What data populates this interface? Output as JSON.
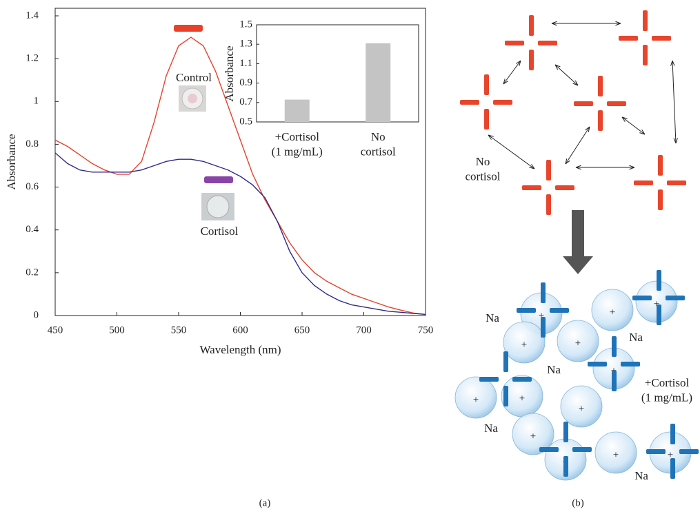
{
  "chart_data": [
    {
      "type": "line",
      "x_label": "Wavelength (nm)",
      "y_label": "Absorbance",
      "x": [
        450,
        460,
        470,
        480,
        490,
        500,
        510,
        520,
        530,
        540,
        550,
        560,
        570,
        580,
        590,
        600,
        610,
        620,
        630,
        640,
        650,
        660,
        670,
        680,
        690,
        700,
        710,
        720,
        730,
        740,
        750
      ],
      "series": [
        {
          "name": "Control",
          "color": "#e8402a",
          "values": [
            0.82,
            0.79,
            0.75,
            0.71,
            0.68,
            0.66,
            0.66,
            0.72,
            0.9,
            1.12,
            1.26,
            1.3,
            1.26,
            1.14,
            0.98,
            0.82,
            0.66,
            0.54,
            0.44,
            0.34,
            0.26,
            0.2,
            0.16,
            0.13,
            0.1,
            0.08,
            0.06,
            0.04,
            0.025,
            0.012,
            0.005
          ]
        },
        {
          "name": "Cortisol",
          "color": "#2e2a8a",
          "values": [
            0.76,
            0.71,
            0.68,
            0.67,
            0.67,
            0.67,
            0.67,
            0.68,
            0.7,
            0.72,
            0.73,
            0.73,
            0.72,
            0.7,
            0.68,
            0.65,
            0.61,
            0.55,
            0.44,
            0.3,
            0.2,
            0.14,
            0.1,
            0.07,
            0.05,
            0.04,
            0.03,
            0.02,
            0.015,
            0.01,
            0.005
          ]
        }
      ],
      "xlim": [
        450,
        750
      ],
      "xticks": [
        450,
        500,
        550,
        600,
        650,
        700,
        750
      ],
      "ylim": [
        0,
        1.4
      ],
      "yticks": [
        0,
        0.2,
        0.4,
        0.6,
        0.8,
        1,
        1.2,
        1.4
      ]
    },
    {
      "type": "bar",
      "y_label": "Absorbance",
      "categories": [
        "+Cortisol\n(1 mg/mL)",
        "No\ncortisol"
      ],
      "values": [
        0.73,
        1.31
      ],
      "color": "#c4c4c4",
      "ylim": [
        0.5,
        1.5
      ],
      "yticks": [
        0.5,
        0.7,
        0.9,
        1.1,
        1.3,
        1.5
      ]
    }
  ],
  "diagram": {
    "no_cortisol": "No\ncortisol",
    "cortisol": "+Cortisol\n(1 mg/mL)",
    "na_labels": [
      "Na",
      "Na",
      "Na",
      "Na",
      "Na"
    ],
    "ion_symbol": "+"
  },
  "panel_labels": [
    "(a)",
    "(b)"
  ]
}
